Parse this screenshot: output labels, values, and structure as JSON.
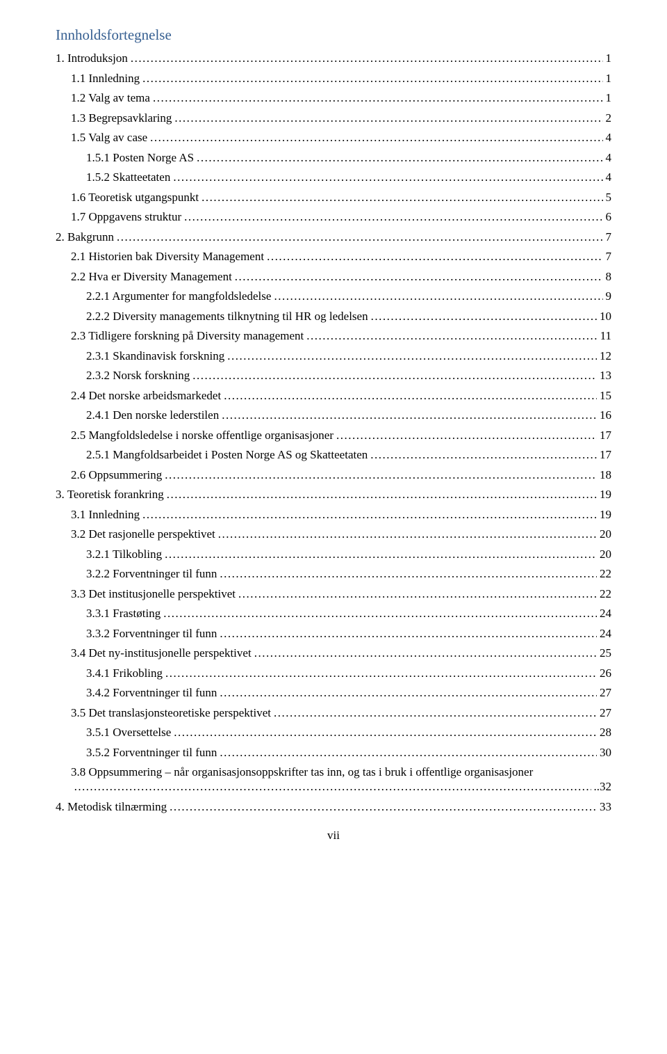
{
  "title": "Innholdsfortegnelse",
  "title_color": "#365f91",
  "page_footer": "vii",
  "entries": [
    {
      "label": "1. Introduksjon",
      "page": "1",
      "indent": 0
    },
    {
      "label": "1.1 Innledning",
      "page": "1",
      "indent": 1
    },
    {
      "label": "1.2 Valg av tema",
      "page": "1",
      "indent": 1
    },
    {
      "label": "1.3 Begrepsavklaring",
      "page": "2",
      "indent": 1
    },
    {
      "label": "1.5 Valg av case",
      "page": "4",
      "indent": 1
    },
    {
      "label": "1.5.1 Posten Norge AS",
      "page": "4",
      "indent": 2
    },
    {
      "label": "1.5.2 Skatteetaten",
      "page": "4",
      "indent": 2
    },
    {
      "label": "1.6 Teoretisk utgangspunkt",
      "page": "5",
      "indent": 1
    },
    {
      "label": "1.7 Oppgavens struktur",
      "page": "6",
      "indent": 1
    },
    {
      "label": "2. Bakgrunn",
      "page": "7",
      "indent": 0
    },
    {
      "label": "2.1 Historien bak Diversity Management",
      "page": "7",
      "indent": 1
    },
    {
      "label": "2.2 Hva er Diversity Management",
      "page": "8",
      "indent": 1
    },
    {
      "label": "2.2.1 Argumenter for mangfoldsledelse",
      "page": "9",
      "indent": 2
    },
    {
      "label": "2.2.2 Diversity managements tilknytning til HR og ledelsen",
      "page": "10",
      "indent": 2
    },
    {
      "label": "2.3 Tidligere forskning på Diversity management",
      "page": "11",
      "indent": 1
    },
    {
      "label": "2.3.1 Skandinavisk forskning",
      "page": "12",
      "indent": 2
    },
    {
      "label": "2.3.2 Norsk forskning",
      "page": "13",
      "indent": 2
    },
    {
      "label": "2.4 Det norske arbeidsmarkedet",
      "page": "15",
      "indent": 1
    },
    {
      "label": "2.4.1 Den norske lederstilen",
      "page": "16",
      "indent": 2
    },
    {
      "label": "2.5 Mangfoldsledelse i norske offentlige organisasjoner",
      "page": "17",
      "indent": 1
    },
    {
      "label": "2.5.1 Mangfoldsarbeidet i Posten Norge AS og Skatteetaten",
      "page": "17",
      "indent": 2
    },
    {
      "label": "2.6 Oppsummering",
      "page": "18",
      "indent": 1
    },
    {
      "label": "3. Teoretisk forankring",
      "page": "19",
      "indent": 0
    },
    {
      "label": "3.1 Innledning",
      "page": "19",
      "indent": 1
    },
    {
      "label": "3.2 Det rasjonelle perspektivet",
      "page": "20",
      "indent": 1
    },
    {
      "label": "3.2.1 Tilkobling",
      "page": "20",
      "indent": 2
    },
    {
      "label": "3.2.2 Forventninger til funn",
      "page": "22",
      "indent": 2
    },
    {
      "label": "3.3 Det institusjonelle perspektivet",
      "page": "22",
      "indent": 1
    },
    {
      "label": "3.3.1 Frastøting",
      "page": "24",
      "indent": 2
    },
    {
      "label": "3.3.2 Forventninger til funn",
      "page": "24",
      "indent": 2
    },
    {
      "label": "3.4 Det ny-institusjonelle perspektivet",
      "page": "25",
      "indent": 1
    },
    {
      "label": "3.4.1 Frikobling",
      "page": "26",
      "indent": 2
    },
    {
      "label": "3.4.2 Forventninger til funn",
      "page": "27",
      "indent": 2
    },
    {
      "label": "3.5 Det translasjonsteoretiske perspektivet",
      "page": "27",
      "indent": 1
    },
    {
      "label": "3.5.1 Oversettelse",
      "page": "28",
      "indent": 2
    },
    {
      "label": "3.5.2 Forventninger til funn",
      "page": "30",
      "indent": 2
    }
  ],
  "special_entry": {
    "label": "3.8 Oppsummering – når organisasjonsoppskrifter tas inn, og tas i bruk i offentlige organisasjoner",
    "page": "32",
    "indent": 1
  },
  "final_entry": {
    "label": "4. Metodisk tilnærming",
    "page": "33",
    "indent": 0
  }
}
